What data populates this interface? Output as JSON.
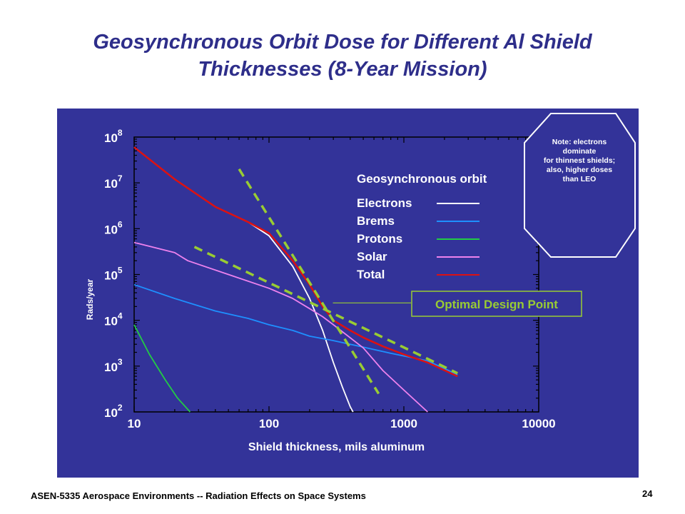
{
  "slide": {
    "title_line1": "Geosynchronous Orbit Dose for Different Al Shield",
    "title_line2": "Thicknesses (8-Year Mission)",
    "footer": "ASEN-5335 Aerospace Environments -- Radiation Effects on Space Systems",
    "page_number": "24"
  },
  "chart_data": {
    "type": "line",
    "title": "",
    "legend_title": "Geosynchronous orbit",
    "xlabel": "Shield thickness, mils aluminum",
    "ylabel": "Rads/year",
    "xscale": "log",
    "yscale": "log",
    "xlim": [
      10,
      10000
    ],
    "ylim": [
      100,
      100000000
    ],
    "x_ticks": [
      "10",
      "100",
      "1000",
      "10000"
    ],
    "y_ticks": [
      {
        "base": "10",
        "exp": "8"
      },
      {
        "base": "10",
        "exp": "7"
      },
      {
        "base": "10",
        "exp": "6"
      },
      {
        "base": "10",
        "exp": "5"
      },
      {
        "base": "10",
        "exp": "4"
      },
      {
        "base": "10",
        "exp": "3"
      },
      {
        "base": "10",
        "exp": "2"
      }
    ],
    "grid": false,
    "legend_position": "top-right",
    "series": [
      {
        "name": "Electrons",
        "color": "#ffffff",
        "x": [
          10,
          20,
          40,
          70,
          100,
          150,
          200,
          250,
          300,
          350,
          400,
          420
        ],
        "y": [
          60000000,
          12000000,
          3000000,
          1400000,
          700000,
          150000,
          30000,
          6000,
          1200,
          350,
          130,
          100
        ]
      },
      {
        "name": "Brems",
        "color": "#1e90ff",
        "x": [
          10,
          20,
          40,
          70,
          100,
          150,
          200,
          300,
          500,
          800,
          1500,
          2500
        ],
        "y": [
          60000,
          30000,
          16000,
          11000,
          8000,
          6000,
          4500,
          3600,
          2600,
          1900,
          1300,
          650
        ]
      },
      {
        "name": "Protons",
        "color": "#22cc44",
        "x": [
          10,
          13,
          17,
          21,
          26
        ],
        "y": [
          8000,
          1800,
          500,
          200,
          100
        ]
      },
      {
        "name": "Solar",
        "color": "#ee82ee",
        "x": [
          10,
          20,
          25,
          50,
          100,
          150,
          200,
          250,
          300,
          500,
          700,
          1000,
          1500
        ],
        "y": [
          500000,
          300000,
          200000,
          100000,
          50000,
          30000,
          18000,
          12000,
          8000,
          2500,
          800,
          300,
          100
        ]
      },
      {
        "name": "Total",
        "color": "#dd1111",
        "x": [
          10,
          20,
          40,
          70,
          100,
          150,
          200,
          250,
          300,
          400,
          500,
          700,
          1000,
          1500,
          2500
        ],
        "y": [
          60000000,
          12000000,
          3000000,
          1400000,
          800000,
          200000,
          60000,
          20000,
          10000,
          6000,
          4200,
          2700,
          1800,
          1200,
          600
        ]
      }
    ],
    "guide_lines": [
      {
        "x": [
          60,
          650
        ],
        "y": [
          20000000,
          250
        ]
      },
      {
        "x": [
          28,
          2500
        ],
        "y": [
          400000,
          700
        ]
      }
    ],
    "annotations": {
      "design_point": "Optimal Design Point",
      "design_point_x": 270,
      "design_point_y": 14000,
      "note": [
        "Note: electrons",
        "dominate",
        "for thinnest shields;",
        "also, higher doses",
        "than LEO"
      ]
    },
    "colors": {
      "panel": "#333399",
      "axis": "#000000",
      "guide": "#99cc33",
      "annotation": "#99cc33"
    }
  }
}
